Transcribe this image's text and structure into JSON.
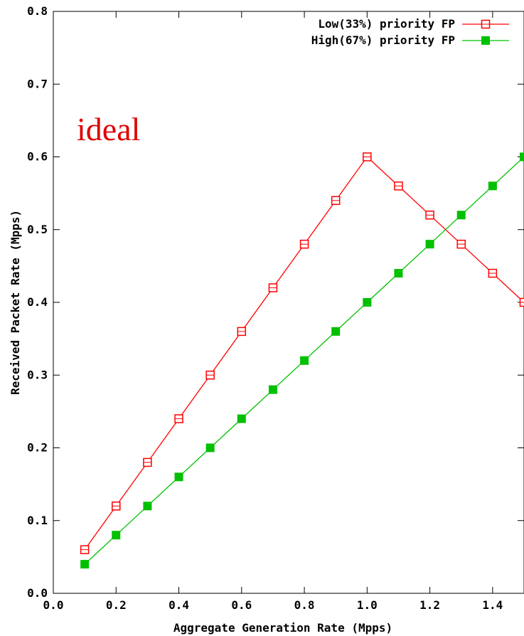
{
  "chart_data": {
    "type": "line",
    "title": "",
    "xlabel": "Aggregate Generation Rate (Mpps)",
    "ylabel": "Received Packet Rate (Mpps)",
    "annotation": "ideal",
    "annotation_color": "#dd0000",
    "xlim": [
      0.0,
      1.5
    ],
    "ylim": [
      0.0,
      0.8
    ],
    "x_ticks": [
      "0.0",
      "0.2",
      "0.4",
      "0.6",
      "0.8",
      "1.0",
      "1.2",
      "1.4"
    ],
    "y_ticks": [
      "0.0",
      "0.1",
      "0.2",
      "0.3",
      "0.4",
      "0.5",
      "0.6",
      "0.7",
      "0.8"
    ],
    "grid": false,
    "legend_position": "top-right",
    "x": [
      0.1,
      0.2,
      0.3,
      0.4,
      0.5,
      0.6,
      0.7,
      0.8,
      0.9,
      1.0,
      1.1,
      1.2,
      1.3,
      1.4,
      1.5
    ],
    "series": [
      {
        "name": "Low(33%) priority FP",
        "color": "#ff0000",
        "marker": "open-square",
        "values": [
          0.06,
          0.12,
          0.18,
          0.24,
          0.3,
          0.36,
          0.42,
          0.48,
          0.54,
          0.6,
          0.56,
          0.52,
          0.48,
          0.44,
          0.4
        ]
      },
      {
        "name": "High(67%) priority FP",
        "color": "#00c000",
        "marker": "filled-square",
        "values": [
          0.04,
          0.08,
          0.12,
          0.16,
          0.2,
          0.24,
          0.28,
          0.32,
          0.36,
          0.4,
          0.44,
          0.48,
          0.52,
          0.56,
          0.6
        ]
      }
    ]
  }
}
